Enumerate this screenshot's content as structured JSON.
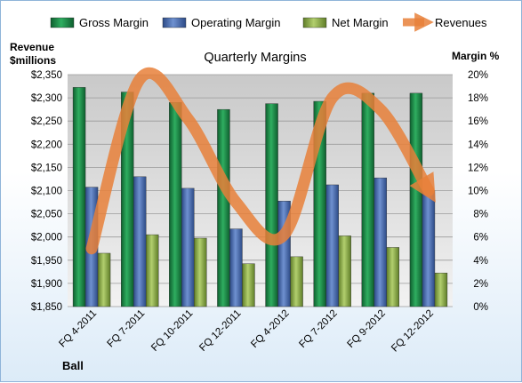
{
  "chart_data": {
    "type": "bar",
    "title": "Quarterly Margins",
    "footer": "Ball",
    "categories": [
      "FQ 4-2011",
      "FQ 7-2011",
      "FQ 10-2011",
      "FQ 12-2011",
      "FQ 4-2012",
      "FQ 7-2012",
      "FQ 9-2012",
      "FQ 12-2012"
    ],
    "y_left": {
      "label_line1": "Revenue",
      "label_line2": "$millions",
      "lim": [
        1850,
        2350
      ],
      "ticks": [
        1850,
        1900,
        1950,
        2000,
        2050,
        2100,
        2150,
        2200,
        2250,
        2300,
        2350
      ],
      "tick_labels": [
        "$1,850",
        "$1,900",
        "$1,950",
        "$2,000",
        "$2,050",
        "$2,100",
        "$2,150",
        "$2,200",
        "$2,250",
        "$2,300",
        "$2,350"
      ]
    },
    "y_right": {
      "label": "Margin %",
      "lim": [
        0,
        20
      ],
      "ticks": [
        0,
        2,
        4,
        6,
        8,
        10,
        12,
        14,
        16,
        18,
        20
      ],
      "tick_labels": [
        "0%",
        "2%",
        "4%",
        "6%",
        "8%",
        "10%",
        "12%",
        "14%",
        "16%",
        "18%",
        "20%"
      ]
    },
    "series": [
      {
        "name": "Gross Margin",
        "axis": "right",
        "color": "#1f8a4c",
        "values": [
          18.9,
          18.5,
          17.6,
          17.0,
          17.5,
          17.7,
          18.4,
          18.4
        ]
      },
      {
        "name": "Operating Margin",
        "axis": "right",
        "color": "#4a6fb5",
        "values": [
          10.3,
          11.2,
          10.2,
          6.7,
          9.1,
          10.5,
          11.1,
          10.0
        ]
      },
      {
        "name": "Net Margin",
        "axis": "right",
        "color": "#8aab4a",
        "values": [
          4.6,
          6.2,
          5.9,
          3.7,
          4.3,
          6.1,
          5.1,
          2.9
        ]
      },
      {
        "name": "Revenues",
        "axis": "left",
        "type": "line",
        "color": "#e8803a",
        "values": [
          1975,
          2340,
          2255,
          2075,
          2005,
          2300,
          2275,
          2100
        ]
      }
    ],
    "grid": true,
    "legend_position": "top"
  }
}
